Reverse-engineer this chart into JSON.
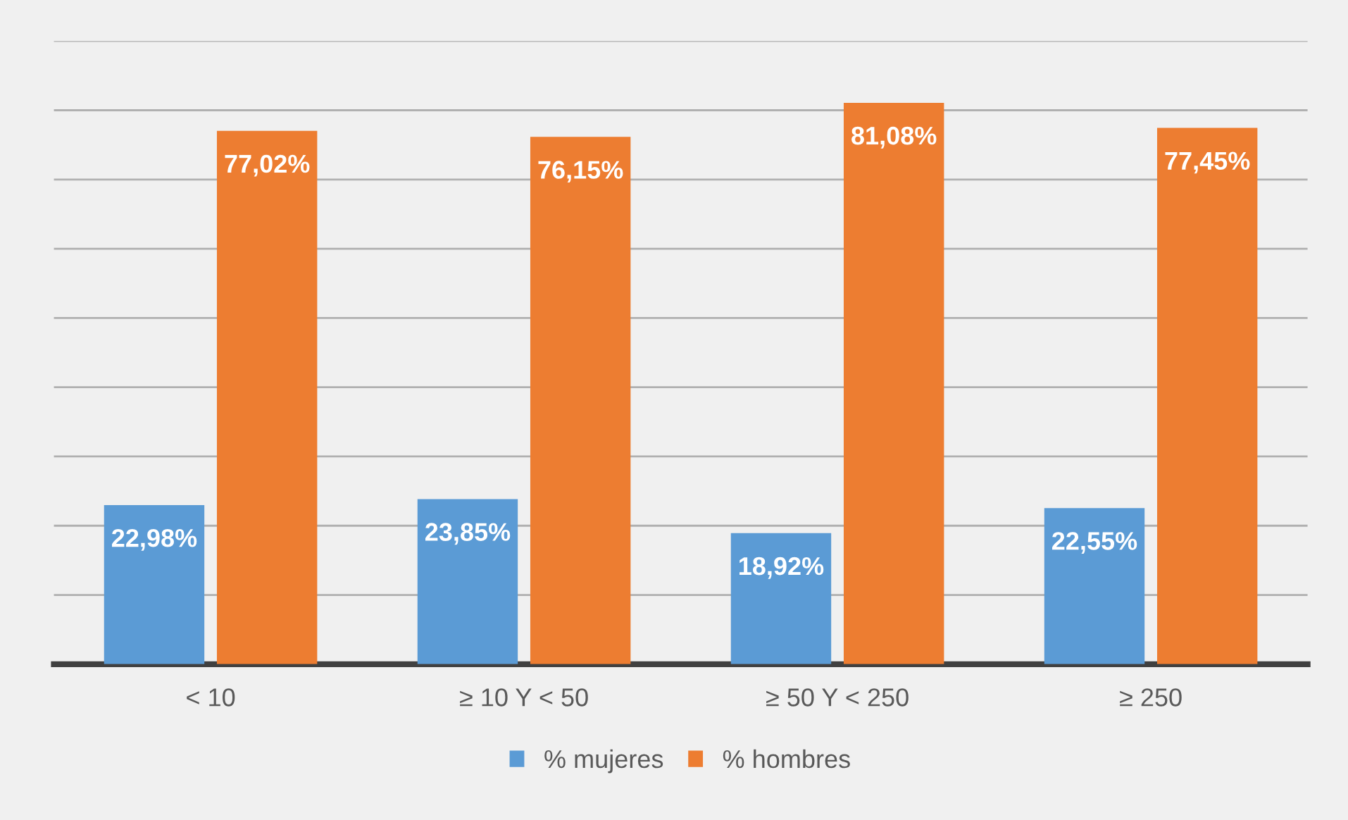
{
  "chart_data": {
    "type": "bar",
    "categories": [
      "< 10",
      "≥ 10 Y < 50",
      "≥ 50 Y < 250",
      "≥ 250"
    ],
    "series": [
      {
        "name": "% mujeres",
        "color": "#5b9bd5",
        "values": [
          22.98,
          23.85,
          18.92,
          22.55
        ],
        "value_labels": [
          "22,98%",
          "23,85%",
          "18,92%",
          "22,55%"
        ]
      },
      {
        "name": "% hombres",
        "color": "#ed7d31",
        "values": [
          77.02,
          76.15,
          81.08,
          77.45
        ],
        "value_labels": [
          "77,02%",
          "76,15%",
          "81,08%",
          "77,45%"
        ]
      }
    ],
    "ylim": [
      0,
      90
    ],
    "yticks": [
      {
        "value": 0,
        "label": null
      },
      {
        "value": 10,
        "label": null
      },
      {
        "value": 20,
        "label": null
      },
      {
        "value": 30,
        "label": null
      },
      {
        "value": 40,
        "label": null
      },
      {
        "value": 50,
        "label": null
      },
      {
        "value": 60,
        "label": null
      },
      {
        "value": 70,
        "label": null
      },
      {
        "value": 80,
        "label": null
      },
      {
        "value": 90,
        "label": null
      }
    ],
    "grid": "y",
    "legend": "bottom",
    "tick_labels": "x"
  }
}
